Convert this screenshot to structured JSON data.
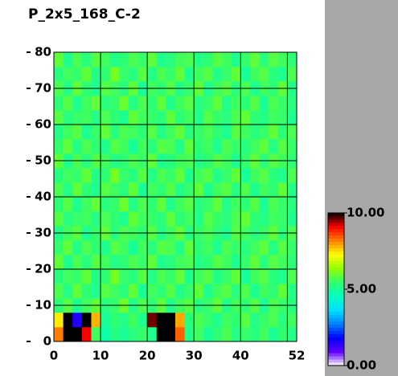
{
  "chart_data": {
    "type": "heatmap",
    "title": "P_2x5_168_C-2",
    "xlim": [
      0,
      52
    ],
    "ylim": [
      0,
      80
    ],
    "xticks": [
      0,
      10,
      20,
      30,
      40,
      52
    ],
    "yticks": [
      0,
      10,
      20,
      30,
      40,
      50,
      60,
      70,
      80
    ],
    "grid_x": [
      10,
      20,
      30,
      40,
      50
    ],
    "grid": true,
    "xbins": [
      0,
      2,
      4,
      6,
      8,
      10,
      12,
      14,
      16,
      18,
      20,
      22,
      24,
      26,
      28,
      30,
      32,
      34,
      36,
      38,
      40,
      42,
      44,
      46,
      48,
      50,
      52
    ],
    "ybins": [
      0,
      4,
      8,
      12,
      16,
      20,
      24,
      28,
      32,
      36,
      40,
      44,
      48,
      52,
      56,
      60,
      64,
      68,
      72,
      76,
      80
    ],
    "clim": [
      0,
      10
    ],
    "cticks": [
      {
        "value": 0,
        "label": "0.00"
      },
      {
        "value": 5,
        "label": "5.00"
      },
      {
        "value": 10,
        "label": "10.00"
      }
    ],
    "colormap": [
      "#ffffff",
      "#6000ff",
      "#0000ff",
      "#0080ff",
      "#00e0ff",
      "#00ffc0",
      "#30ff70",
      "#90ff00",
      "#ffff00",
      "#ff8000",
      "#ff0000",
      "#000000"
    ],
    "z": [
      [
        8.2,
        11,
        11,
        9.1,
        5.6,
        4.8,
        5.2,
        5.0,
        5.3,
        5.5,
        5.1,
        11,
        11,
        8.4,
        5.2,
        5.6,
        5.0,
        5.4,
        5.7,
        5.2,
        5.5,
        5.3,
        5.6,
        5.0,
        5.4,
        5.2
      ],
      [
        7.4,
        11,
        1.5,
        10.2,
        7.8,
        5.0,
        5.4,
        5.2,
        5.6,
        5.1,
        9.6,
        11,
        11,
        7.9,
        5.3,
        5.7,
        5.5,
        5.1,
        5.6,
        5.4,
        5.8,
        5.2,
        5.5,
        5.7,
        5.3,
        5.6
      ],
      [
        5.4,
        5.8,
        5.1,
        5.6,
        5.9,
        5.3,
        5.5,
        6.0,
        5.2,
        5.7,
        5.4,
        5.9,
        5.1,
        5.6,
        5.8,
        5.3,
        5.5,
        5.9,
        5.2,
        5.6,
        5.4,
        5.8,
        5.0,
        5.7,
        5.5,
        5.3
      ],
      [
        5.7,
        5.2,
        5.9,
        5.4,
        5.1,
        5.8,
        5.6,
        5.3,
        5.9,
        5.0,
        5.6,
        5.4,
        5.8,
        5.2,
        5.5,
        5.9,
        5.1,
        5.6,
        5.8,
        5.3,
        5.7,
        5.1,
        5.6,
        5.4,
        5.9,
        5.2
      ],
      [
        5.3,
        5.6,
        5.5,
        5.9,
        5.2,
        5.4,
        6.1,
        5.5,
        5.3,
        5.8,
        5.2,
        5.7,
        5.5,
        5.9,
        5.1,
        5.6,
        5.8,
        5.2,
        5.5,
        5.9,
        5.0,
        5.6,
        5.8,
        5.3,
        5.1,
        5.7
      ],
      [
        5.9,
        5.1,
        5.7,
        5.3,
        5.8,
        5.6,
        5.2,
        5.4,
        5.7,
        5.5,
        5.9,
        5.1,
        5.3,
        5.6,
        5.7,
        5.2,
        5.4,
        5.8,
        5.6,
        5.1,
        5.5,
        5.9,
        5.3,
        5.8,
        5.6,
        5.4
      ],
      [
        5.5,
        5.9,
        5.2,
        5.7,
        5.4,
        5.1,
        5.8,
        5.6,
        5.0,
        5.6,
        5.3,
        5.8,
        5.7,
        5.2,
        5.9,
        5.4,
        5.6,
        5.1,
        5.7,
        5.5,
        5.3,
        5.6,
        5.9,
        5.2,
        5.8,
        5.5
      ],
      [
        5.2,
        5.6,
        5.8,
        5.1,
        5.5,
        5.9,
        5.3,
        5.7,
        5.6,
        5.4,
        5.8,
        5.2,
        5.6,
        5.9,
        5.3,
        5.5,
        5.7,
        5.4,
        5.1,
        5.8,
        5.6,
        5.3,
        5.5,
        5.9,
        5.4,
        5.7
      ],
      [
        5.8,
        5.3,
        5.5,
        5.6,
        5.2,
        5.7,
        5.4,
        5.1,
        5.9,
        5.6,
        5.5,
        5.3,
        5.9,
        5.4,
        5.6,
        5.2,
        5.8,
        5.5,
        5.3,
        5.7,
        5.9,
        5.4,
        5.2,
        5.6,
        5.5,
        5.1
      ],
      [
        5.4,
        5.8,
        5.1,
        5.6,
        5.9,
        5.3,
        5.5,
        6.0,
        5.2,
        5.7,
        5.4,
        5.9,
        5.1,
        5.6,
        5.8,
        5.3,
        5.5,
        5.9,
        5.2,
        5.6,
        5.4,
        5.8,
        5.0,
        5.7,
        5.5,
        5.3
      ],
      [
        5.7,
        5.2,
        5.9,
        5.4,
        5.1,
        5.8,
        5.6,
        5.3,
        5.9,
        5.0,
        5.6,
        5.4,
        5.8,
        5.2,
        5.5,
        5.9,
        5.1,
        5.6,
        5.8,
        5.3,
        5.7,
        5.1,
        5.6,
        5.4,
        5.9,
        5.2
      ],
      [
        5.3,
        5.6,
        5.5,
        5.9,
        5.2,
        5.4,
        6.1,
        5.5,
        5.3,
        5.8,
        5.2,
        5.7,
        5.5,
        5.9,
        5.1,
        5.6,
        5.8,
        5.2,
        5.5,
        5.9,
        5.0,
        5.6,
        5.8,
        5.3,
        5.1,
        5.7
      ],
      [
        5.9,
        5.1,
        5.7,
        5.3,
        5.8,
        5.6,
        5.2,
        5.4,
        5.7,
        5.5,
        5.9,
        5.1,
        5.3,
        5.6,
        5.7,
        5.2,
        5.4,
        5.8,
        5.6,
        5.1,
        5.5,
        5.9,
        5.3,
        5.8,
        5.6,
        5.4
      ],
      [
        5.5,
        5.9,
        5.2,
        5.7,
        5.4,
        5.1,
        5.8,
        5.6,
        5.0,
        5.6,
        5.3,
        5.8,
        5.7,
        5.2,
        5.9,
        5.4,
        5.6,
        5.1,
        5.7,
        5.5,
        5.3,
        5.6,
        5.9,
        5.2,
        5.8,
        5.5
      ],
      [
        5.2,
        5.6,
        5.8,
        5.1,
        5.5,
        5.9,
        5.3,
        5.7,
        5.6,
        5.4,
        5.8,
        5.2,
        5.6,
        5.9,
        5.3,
        5.5,
        5.7,
        5.4,
        5.1,
        5.8,
        5.6,
        5.3,
        5.5,
        5.9,
        5.4,
        5.7
      ],
      [
        5.8,
        5.3,
        5.5,
        5.6,
        5.2,
        5.7,
        5.4,
        5.1,
        5.9,
        5.6,
        5.5,
        5.3,
        5.9,
        5.4,
        5.6,
        5.2,
        5.8,
        5.5,
        5.3,
        5.7,
        5.9,
        5.4,
        5.2,
        5.6,
        5.5,
        5.1
      ],
      [
        5.4,
        5.8,
        5.1,
        5.6,
        5.9,
        5.3,
        5.5,
        6.0,
        5.2,
        5.7,
        5.4,
        5.9,
        5.1,
        5.6,
        5.8,
        5.3,
        5.5,
        5.9,
        5.2,
        5.6,
        5.4,
        5.8,
        5.0,
        5.7,
        5.5,
        5.3
      ],
      [
        5.7,
        5.2,
        5.9,
        5.4,
        5.1,
        5.8,
        5.6,
        5.3,
        5.9,
        5.0,
        5.6,
        5.4,
        5.8,
        5.2,
        5.5,
        5.9,
        5.1,
        5.6,
        5.8,
        5.3,
        5.7,
        5.1,
        5.6,
        5.4,
        5.9,
        5.2
      ],
      [
        5.3,
        5.6,
        5.5,
        5.9,
        5.2,
        5.4,
        6.1,
        5.5,
        5.3,
        5.8,
        5.2,
        5.7,
        5.5,
        5.9,
        5.1,
        5.6,
        5.8,
        5.2,
        5.5,
        5.9,
        5.0,
        5.6,
        5.8,
        5.3,
        5.1,
        5.7
      ],
      [
        5.9,
        5.1,
        5.7,
        5.3,
        5.8,
        5.6,
        5.2,
        5.4,
        5.7,
        5.5,
        5.9,
        5.1,
        5.3,
        5.6,
        5.7,
        5.2,
        5.4,
        5.8,
        5.6,
        5.1,
        5.5,
        5.9,
        5.3,
        5.8,
        5.6,
        5.4
      ]
    ]
  }
}
